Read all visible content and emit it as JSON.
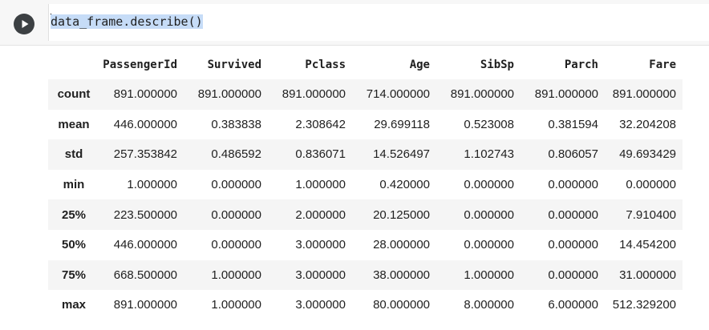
{
  "cell": {
    "run_button_icon": "play-icon",
    "code": "data_frame.describe()"
  },
  "table": {
    "columns": [
      "PassengerId",
      "Survived",
      "Pclass",
      "Age",
      "SibSp",
      "Parch",
      "Fare"
    ],
    "rows": [
      {
        "label": "count",
        "values": [
          "891.000000",
          "891.000000",
          "891.000000",
          "714.000000",
          "891.000000",
          "891.000000",
          "891.000000"
        ]
      },
      {
        "label": "mean",
        "values": [
          "446.000000",
          "0.383838",
          "2.308642",
          "29.699118",
          "0.523008",
          "0.381594",
          "32.204208"
        ]
      },
      {
        "label": "std",
        "values": [
          "257.353842",
          "0.486592",
          "0.836071",
          "14.526497",
          "1.102743",
          "0.806057",
          "49.693429"
        ]
      },
      {
        "label": "min",
        "values": [
          "1.000000",
          "0.000000",
          "1.000000",
          "0.420000",
          "0.000000",
          "0.000000",
          "0.000000"
        ]
      },
      {
        "label": "25%",
        "values": [
          "223.500000",
          "0.000000",
          "2.000000",
          "20.125000",
          "0.000000",
          "0.000000",
          "7.910400"
        ]
      },
      {
        "label": "50%",
        "values": [
          "446.000000",
          "0.000000",
          "3.000000",
          "28.000000",
          "0.000000",
          "0.000000",
          "14.454200"
        ]
      },
      {
        "label": "75%",
        "values": [
          "668.500000",
          "1.000000",
          "3.000000",
          "38.000000",
          "1.000000",
          "0.000000",
          "31.000000"
        ]
      },
      {
        "label": "max",
        "values": [
          "891.000000",
          "1.000000",
          "3.000000",
          "80.000000",
          "8.000000",
          "6.000000",
          "512.329200"
        ]
      }
    ]
  }
}
